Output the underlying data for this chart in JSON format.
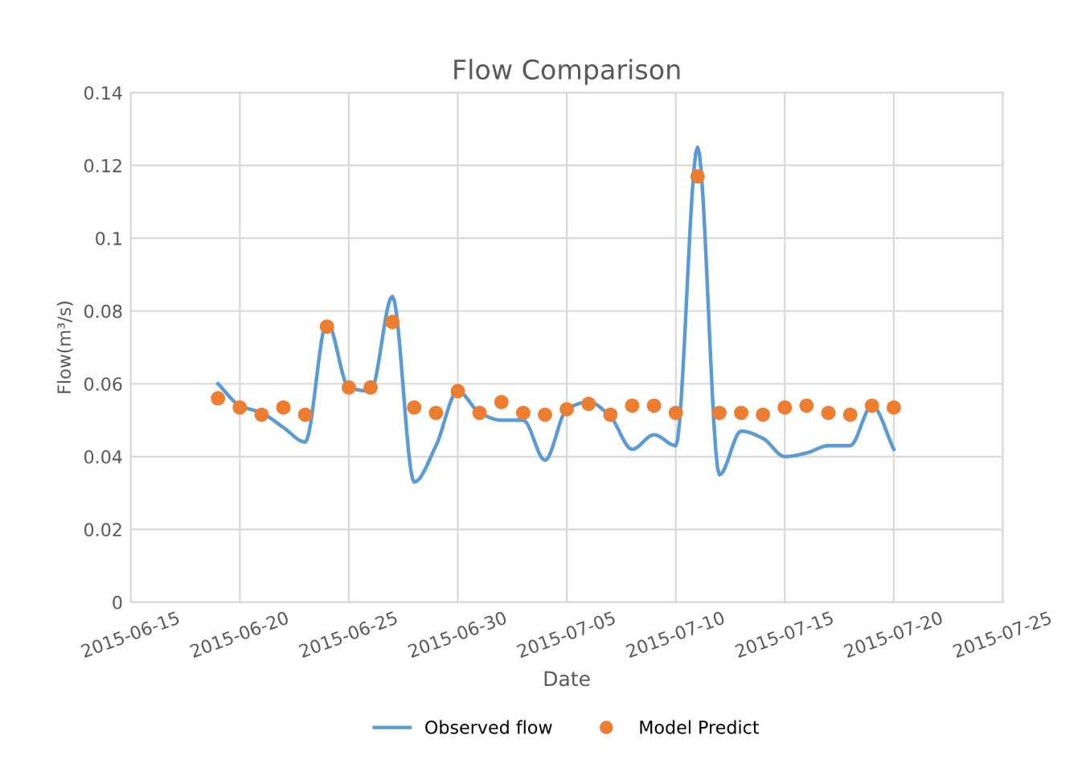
{
  "chart_data": {
    "type": "line",
    "title": "Flow Comparison",
    "xlabel": "Date",
    "ylabel": "Flow(m³/s)",
    "x": [
      "2015-06-19",
      "2015-06-20",
      "2015-06-21",
      "2015-06-22",
      "2015-06-23",
      "2015-06-24",
      "2015-06-25",
      "2015-06-26",
      "2015-06-27",
      "2015-06-28",
      "2015-06-29",
      "2015-06-30",
      "2015-07-01",
      "2015-07-02",
      "2015-07-03",
      "2015-07-04",
      "2015-07-05",
      "2015-07-06",
      "2015-07-07",
      "2015-07-08",
      "2015-07-09",
      "2015-07-10",
      "2015-07-11",
      "2015-07-12",
      "2015-07-13",
      "2015-07-14",
      "2015-07-15",
      "2015-07-16",
      "2015-07-17",
      "2015-07-18",
      "2015-07-19",
      "2015-07-20"
    ],
    "series": [
      {
        "name": "Observed flow",
        "color": "#5b9bd5",
        "marker": "none",
        "line_style": "solid",
        "values": [
          0.06,
          0.054,
          0.052,
          0.048,
          0.044,
          0.077,
          0.059,
          0.058,
          0.084,
          0.033,
          0.043,
          0.058,
          0.052,
          0.05,
          0.05,
          0.039,
          0.053,
          0.055,
          0.051,
          0.042,
          0.046,
          0.043,
          0.125,
          0.035,
          0.047,
          0.045,
          0.04,
          0.041,
          0.043,
          0.043,
          0.054,
          0.042
        ]
      },
      {
        "name": "Model Predict",
        "type": "scatter",
        "color": "#ed7d31",
        "marker": "circle",
        "values": [
          0.056,
          0.0535,
          0.0515,
          0.0535,
          0.0515,
          0.0757,
          0.059,
          0.059,
          0.077,
          0.0535,
          0.052,
          0.058,
          0.052,
          0.055,
          0.052,
          0.0515,
          0.053,
          0.0545,
          0.0515,
          0.054,
          0.054,
          0.052,
          0.117,
          0.052,
          0.052,
          0.0515,
          0.0535,
          0.054,
          0.052,
          0.0515,
          0.054,
          0.0535
        ]
      }
    ],
    "xlim": [
      "2015-06-15",
      "2015-07-25"
    ],
    "xticks": [
      "2015-06-15",
      "2015-06-20",
      "2015-06-25",
      "2015-06-30",
      "2015-07-05",
      "2015-07-10",
      "2015-07-15",
      "2015-07-20",
      "2015-07-25"
    ],
    "ylim": [
      0,
      0.14
    ],
    "yticks": [
      0,
      0.02,
      0.04,
      0.06,
      0.08,
      0.1,
      0.12,
      0.14
    ],
    "grid": true,
    "legend": "bottom"
  }
}
